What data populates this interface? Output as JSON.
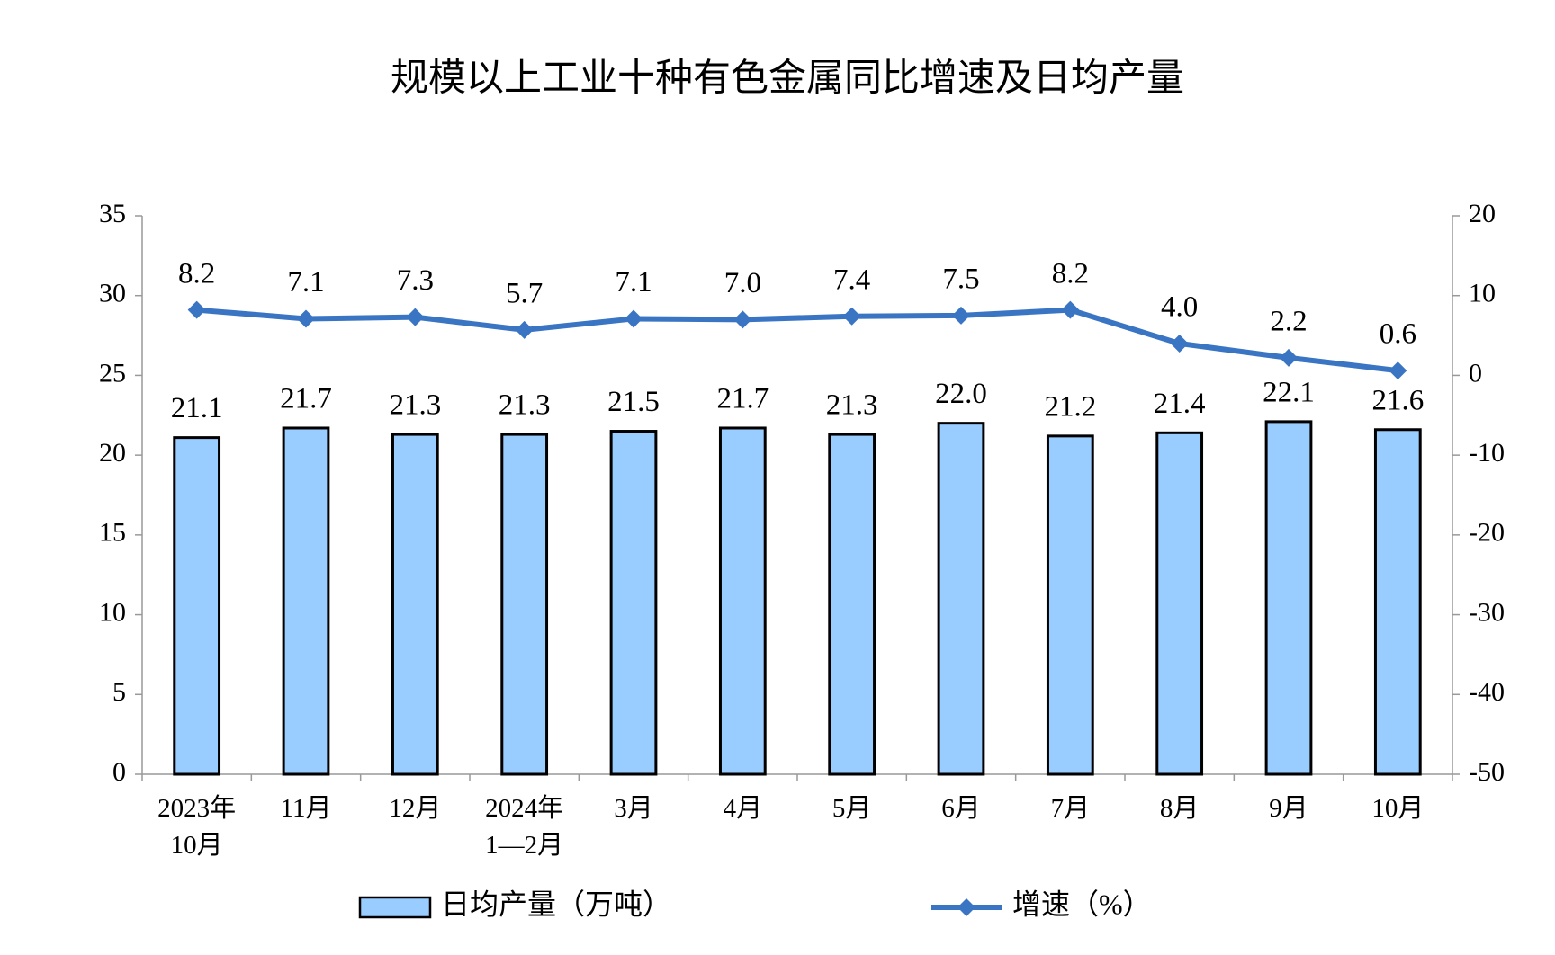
{
  "chart_data": {
    "type": "bar-line",
    "title": "规模以上工业十种有色金属同比增速及日均产量",
    "categories": [
      "2023年\n10月",
      "11月",
      "12月",
      "2024年\n1—2月",
      "3月",
      "4月",
      "5月",
      "6月",
      "7月",
      "8月",
      "9月",
      "10月"
    ],
    "series": [
      {
        "name": "日均产量（万吨）",
        "type": "bar",
        "color": "#99ccff",
        "values": [
          21.1,
          21.7,
          21.3,
          21.3,
          21.5,
          21.7,
          21.3,
          22.0,
          21.2,
          21.4,
          22.1,
          21.6
        ],
        "value_labels": [
          "21.1",
          "21.7",
          "21.3",
          "21.3",
          "21.5",
          "21.7",
          "21.3",
          "22.0",
          "21.2",
          "21.4",
          "22.1",
          "21.6"
        ]
      },
      {
        "name": "增速（%）",
        "type": "line",
        "axis": "y2",
        "color": "#3a75c4",
        "values": [
          8.2,
          7.1,
          7.3,
          5.7,
          7.1,
          7.0,
          7.4,
          7.5,
          8.2,
          4.0,
          2.2,
          0.6
        ],
        "value_labels": [
          "8.2",
          "7.1",
          "7.3",
          "5.7",
          "7.1",
          "7.0",
          "7.4",
          "7.5",
          "8.2",
          "4.0",
          "2.2",
          "0.6"
        ]
      }
    ],
    "ylim": [
      0,
      35
    ],
    "yticks": [
      0,
      5,
      10,
      15,
      20,
      25,
      30,
      35
    ],
    "y2lim": [
      -50,
      20
    ],
    "y2ticks": [
      -50,
      -40,
      -30,
      -20,
      -10,
      0,
      10,
      20
    ],
    "grid": false,
    "legend": "bottom"
  }
}
